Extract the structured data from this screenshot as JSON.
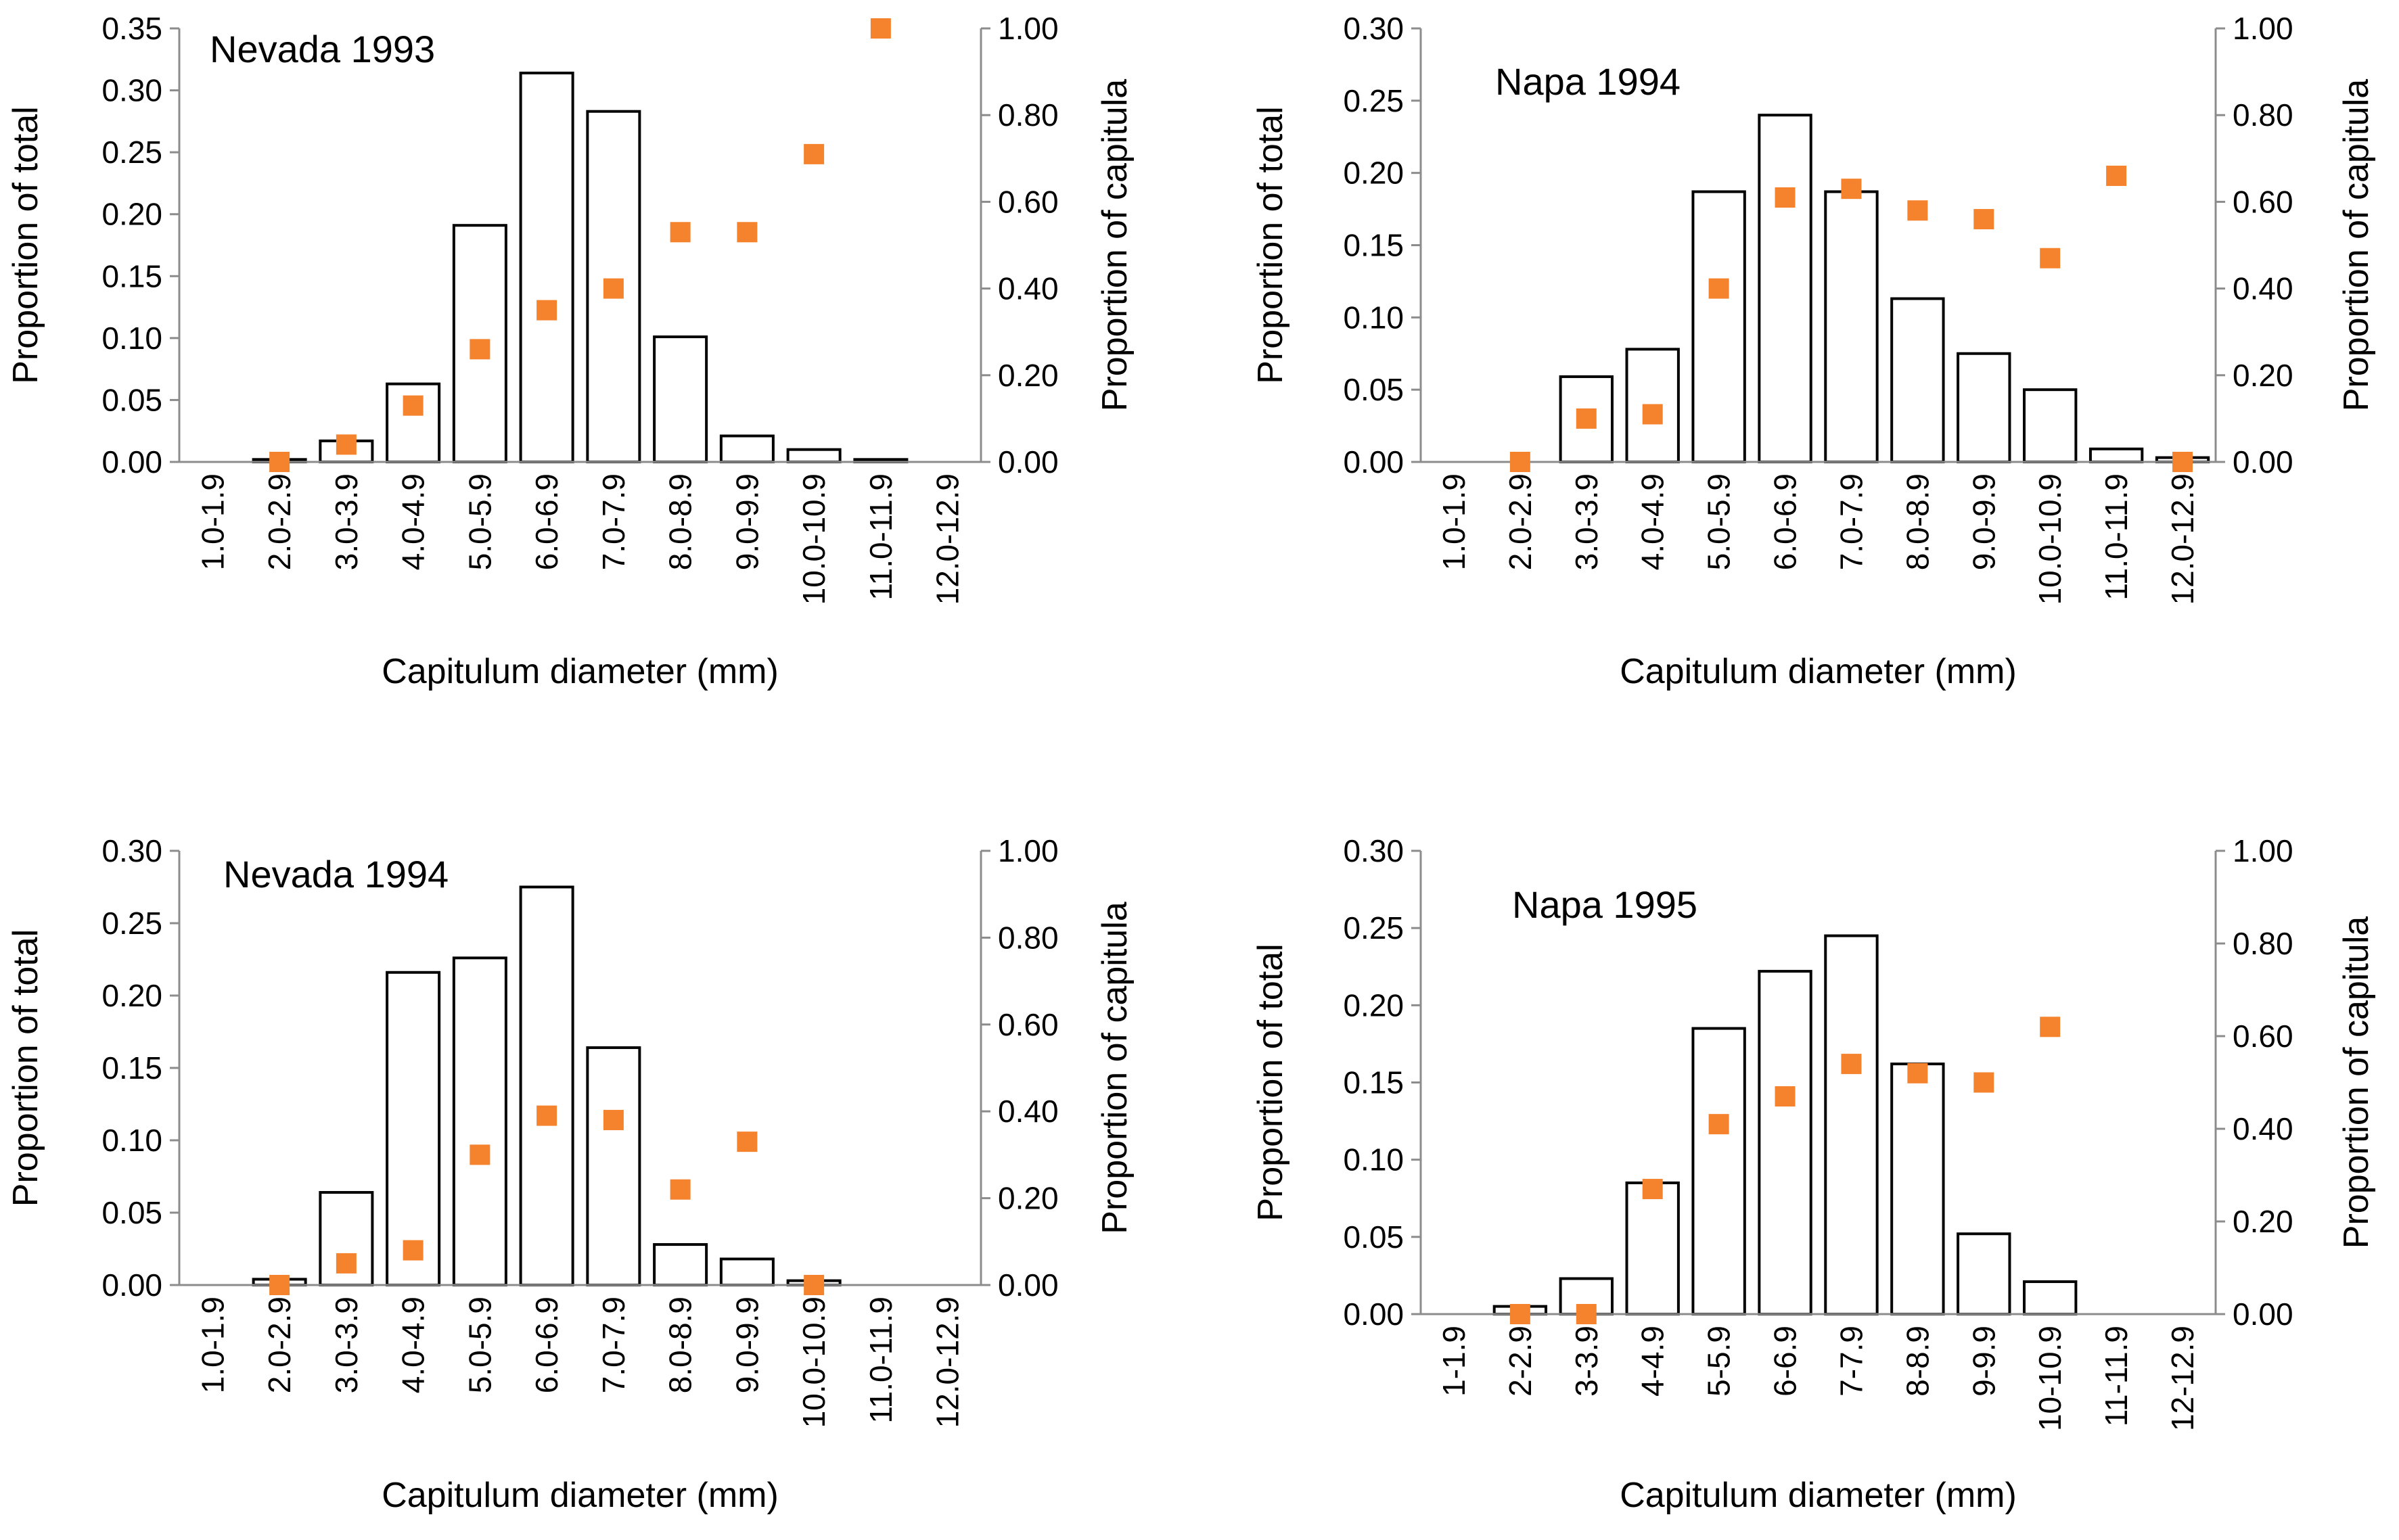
{
  "figure": {
    "colors": {
      "bar_fill": "#ffffff",
      "bar_stroke": "#000000",
      "marker": "#f5822d",
      "axis": "#8c8c8c"
    }
  },
  "chart_data": [
    {
      "type": "bar",
      "panel_title": "Nevada 1993",
      "categories": [
        "1.0-1.9",
        "2.0-2.9",
        "3.0-3.9",
        "4.0-4.9",
        "5.0-5.9",
        "6.0-6.9",
        "7.0-7.9",
        "8.0-8.9",
        "9.0-9.9",
        "10.0-10.9",
        "11.0-11.9",
        "12.0-12.9"
      ],
      "xlabel": "Capitulum diameter (mm)",
      "ylabel": "Proportion of total",
      "y2label": "Proportion of capitula",
      "ylim": [
        0,
        0.35
      ],
      "y2lim": [
        0,
        1.0
      ],
      "yticks": [
        "0.00",
        "0.05",
        "0.10",
        "0.15",
        "0.20",
        "0.25",
        "0.30",
        "0.35"
      ],
      "y2ticks": [
        "0.00",
        "0.20",
        "0.40",
        "0.60",
        "0.80",
        "1.00"
      ],
      "series": [
        {
          "name": "Proportion of total",
          "kind": "bar",
          "axis": "left",
          "values": [
            0,
            0.002,
            0.017,
            0.063,
            0.191,
            0.314,
            0.283,
            0.101,
            0.021,
            0.01,
            0.002,
            0
          ]
        },
        {
          "name": "Proportion of capitula",
          "kind": "marker",
          "axis": "right",
          "values": [
            null,
            0.0,
            0.04,
            0.13,
            0.26,
            0.35,
            0.4,
            0.53,
            0.53,
            0.71,
            1.0,
            null
          ]
        }
      ]
    },
    {
      "type": "bar",
      "panel_title": "Napa 1994",
      "categories": [
        "1.0-1.9",
        "2.0-2.9",
        "3.0-3.9",
        "4.0-4.9",
        "5.0-5.9",
        "6.0-6.9",
        "7.0-7.9",
        "8.0-8.9",
        "9.0-9.9",
        "10.0-10.9",
        "11.0-11.9",
        "12.0-12.9"
      ],
      "xlabel": "Capitulum diameter (mm)",
      "ylabel": "Proportion of total",
      "y2label": "Proportion of capitula",
      "ylim": [
        0,
        0.3
      ],
      "y2lim": [
        0,
        1.0
      ],
      "yticks": [
        "0.00",
        "0.05",
        "0.10",
        "0.15",
        "0.20",
        "0.25",
        "0.30"
      ],
      "y2ticks": [
        "0.00",
        "0.20",
        "0.40",
        "0.60",
        "0.80",
        "1.00"
      ],
      "series": [
        {
          "name": "Proportion of total",
          "kind": "bar",
          "axis": "left",
          "values": [
            0,
            0,
            0.059,
            0.078,
            0.187,
            0.24,
            0.187,
            0.113,
            0.075,
            0.05,
            0.009,
            0.003
          ]
        },
        {
          "name": "Proportion of capitula",
          "kind": "marker",
          "axis": "right",
          "values": [
            null,
            0.0,
            0.1,
            0.11,
            0.4,
            0.61,
            0.63,
            0.58,
            0.56,
            0.47,
            0.66,
            0.0
          ]
        }
      ]
    },
    {
      "type": "bar",
      "panel_title": "Nevada 1994",
      "categories": [
        "1.0-1.9",
        "2.0-2.9",
        "3.0-3.9",
        "4.0-4.9",
        "5.0-5.9",
        "6.0-6.9",
        "7.0-7.9",
        "8.0-8.9",
        "9.0-9.9",
        "10.0-10.9",
        "11.0-11.9",
        "12.0-12.9"
      ],
      "xlabel": "Capitulum diameter (mm)",
      "ylabel": "Proportion of total",
      "y2label": "Proportion of capitula",
      "ylim": [
        0,
        0.3
      ],
      "y2lim": [
        0,
        1.0
      ],
      "yticks": [
        "0.00",
        "0.05",
        "0.10",
        "0.15",
        "0.20",
        "0.25",
        "0.30"
      ],
      "y2ticks": [
        "0.00",
        "0.20",
        "0.40",
        "0.60",
        "0.80",
        "1.00"
      ],
      "series": [
        {
          "name": "Proportion of total",
          "kind": "bar",
          "axis": "left",
          "values": [
            0,
            0.004,
            0.064,
            0.216,
            0.226,
            0.275,
            0.164,
            0.028,
            0.018,
            0.003,
            0,
            0
          ]
        },
        {
          "name": "Proportion of capitula",
          "kind": "marker",
          "axis": "right",
          "values": [
            null,
            0.0,
            0.05,
            0.08,
            0.3,
            0.39,
            0.38,
            0.22,
            0.33,
            0.0,
            null,
            null
          ]
        }
      ]
    },
    {
      "type": "bar",
      "panel_title": "Napa 1995",
      "categories": [
        "1-1.9",
        "2-2.9",
        "3-3.9",
        "4-4.9",
        "5-5.9",
        "6-6.9",
        "7-7.9",
        "8-8.9",
        "9-9.9",
        "10-10.9",
        "11-11.9",
        "12-12.9"
      ],
      "xlabel": "Capitulum diameter (mm)",
      "ylabel": "Proportion of total",
      "y2label": "Proportion of capitula",
      "ylim": [
        0,
        0.3
      ],
      "y2lim": [
        0,
        1.0
      ],
      "yticks": [
        "0.00",
        "0.05",
        "0.10",
        "0.15",
        "0.20",
        "0.25",
        "0.30"
      ],
      "y2ticks": [
        "0.00",
        "0.20",
        "0.40",
        "0.60",
        "0.80",
        "1.00"
      ],
      "series": [
        {
          "name": "Proportion of total",
          "kind": "bar",
          "axis": "left",
          "values": [
            0,
            0.005,
            0.023,
            0.085,
            0.185,
            0.222,
            0.245,
            0.162,
            0.052,
            0.021,
            0,
            0
          ]
        },
        {
          "name": "Proportion of capitula",
          "kind": "marker",
          "axis": "right",
          "values": [
            null,
            0.0,
            0.0,
            0.27,
            0.41,
            0.47,
            0.54,
            0.52,
            0.5,
            0.62,
            null,
            null
          ]
        }
      ]
    }
  ]
}
